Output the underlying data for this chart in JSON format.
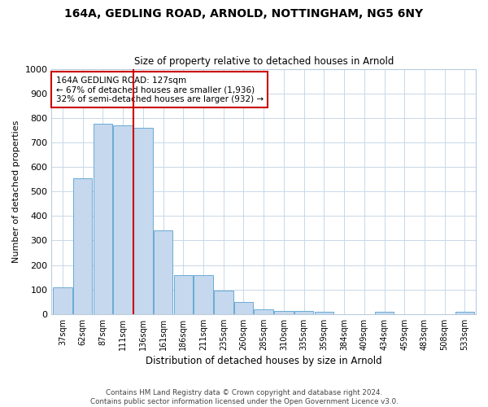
{
  "title": "164A, GEDLING ROAD, ARNOLD, NOTTINGHAM, NG5 6NY",
  "subtitle": "Size of property relative to detached houses in Arnold",
  "xlabel": "Distribution of detached houses by size in Arnold",
  "ylabel": "Number of detached properties",
  "categories": [
    "37sqm",
    "62sqm",
    "87sqm",
    "111sqm",
    "136sqm",
    "161sqm",
    "186sqm",
    "211sqm",
    "235sqm",
    "260sqm",
    "285sqm",
    "310sqm",
    "335sqm",
    "359sqm",
    "384sqm",
    "409sqm",
    "434sqm",
    "459sqm",
    "483sqm",
    "508sqm",
    "533sqm"
  ],
  "values": [
    110,
    555,
    775,
    770,
    760,
    340,
    160,
    160,
    95,
    50,
    20,
    12,
    12,
    10,
    0,
    0,
    8,
    0,
    0,
    0,
    10
  ],
  "bar_color": "#c5d8ee",
  "bar_edge_color": "#6aaad4",
  "vline_color": "#cc0000",
  "annotation_text": "164A GEDLING ROAD: 127sqm\n← 67% of detached houses are smaller (1,936)\n32% of semi-detached houses are larger (932) →",
  "annotation_box_color": "#ffffff",
  "annotation_box_edge": "#cc0000",
  "ylim": [
    0,
    1000
  ],
  "yticks": [
    0,
    100,
    200,
    300,
    400,
    500,
    600,
    700,
    800,
    900,
    1000
  ],
  "footer_line1": "Contains HM Land Registry data © Crown copyright and database right 2024.",
  "footer_line2": "Contains public sector information licensed under the Open Government Licence v3.0.",
  "background_color": "#ffffff",
  "grid_color": "#c8d8e8"
}
